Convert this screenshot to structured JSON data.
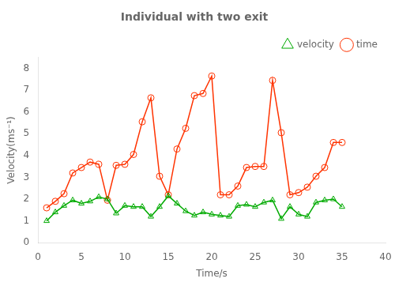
{
  "chart_data": {
    "type": "line",
    "title": "Individual with two exit",
    "xlabel": "Time/s",
    "ylabel": "Velocity(ms⁻¹)",
    "x": [
      1,
      2,
      3,
      4,
      5,
      6,
      7,
      8,
      9,
      10,
      11,
      12,
      13,
      14,
      15,
      16,
      17,
      18,
      19,
      20,
      21,
      22,
      23,
      24,
      25,
      26,
      27,
      28,
      29,
      30,
      31,
      32,
      33,
      34,
      35
    ],
    "series": [
      {
        "name": "velocity",
        "color": "#00aa00",
        "marker": "triangle",
        "values": [
          1.0,
          1.4,
          1.7,
          1.95,
          1.8,
          1.9,
          2.1,
          2.0,
          1.35,
          1.7,
          1.65,
          1.65,
          1.2,
          1.65,
          2.15,
          1.8,
          1.45,
          1.25,
          1.4,
          1.3,
          1.25,
          1.2,
          1.7,
          1.75,
          1.65,
          1.85,
          1.95,
          1.1,
          1.65,
          1.3,
          1.2,
          1.85,
          1.95,
          2.0,
          1.65
        ]
      },
      {
        "name": "time",
        "color": "#ff3300",
        "marker": "circle",
        "values": [
          1.6,
          1.9,
          2.25,
          3.2,
          3.45,
          3.7,
          3.6,
          1.95,
          3.55,
          3.6,
          4.05,
          5.55,
          6.65,
          3.05,
          2.2,
          4.3,
          5.25,
          6.75,
          6.85,
          7.65,
          2.2,
          2.2,
          2.6,
          3.45,
          3.5,
          3.5,
          7.45,
          5.05,
          2.2,
          2.3,
          2.55,
          3.05,
          3.45,
          4.6,
          4.6
        ]
      }
    ],
    "xlim": [
      0,
      40
    ],
    "ylim": [
      0,
      8.5
    ],
    "xticks": [
      0,
      5,
      10,
      15,
      20,
      25,
      30,
      35,
      40
    ],
    "yticks": [
      0,
      1,
      2,
      3,
      4,
      5,
      6,
      7,
      8
    ],
    "grid": false,
    "legend": "upper right"
  }
}
